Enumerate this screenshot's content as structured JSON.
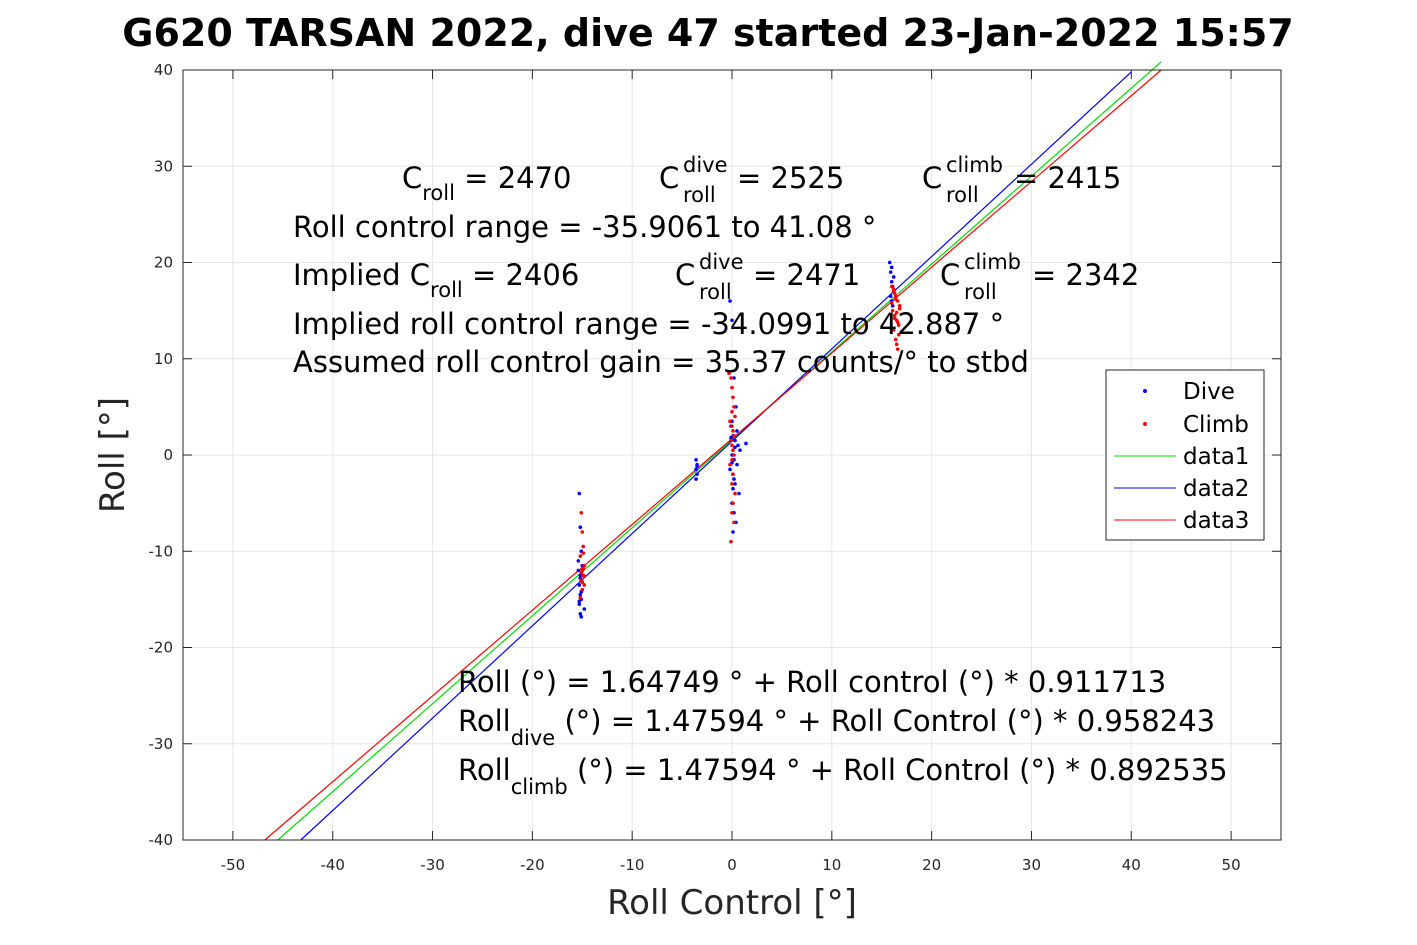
{
  "chart_data": {
    "type": "scatter",
    "title": "G620 TARSAN 2022, dive 47 started 23-Jan-2022 15:57",
    "xlabel": "Roll Control [°]",
    "ylabel": "Roll [°]",
    "xlim": [
      -55,
      55
    ],
    "ylim": [
      -40,
      40
    ],
    "xticks": [
      "-50",
      "-40",
      "-30",
      "-20",
      "-10",
      "0",
      "10",
      "20",
      "30",
      "40",
      "50"
    ],
    "yticks": [
      "-40",
      "-30",
      "-20",
      "-10",
      "0",
      "10",
      "20",
      "30",
      "40"
    ],
    "grid": true,
    "legend_position": "top-right",
    "colors": {
      "dive": "#0000ff",
      "climb": "#ff0000",
      "data1": "#00dd00",
      "data2": "#0000ff",
      "data3": "#ff0000"
    },
    "series": [
      {
        "name": "Dive",
        "kind": "points",
        "color": "#0000ff",
        "x": [
          -15.3,
          -15.2,
          -15.1,
          -15.0,
          -15.4,
          -15.2,
          -15.1,
          -15.3,
          -15.0,
          -15.2,
          -15.1,
          -15.3,
          -14.8,
          -15.2,
          -15.4,
          -15.0,
          -15.1,
          -15.2,
          -15.3,
          -15.1,
          -3.6,
          -3.5,
          -3.6,
          -3.5,
          -3.6,
          -3.5,
          -0.2,
          0.0,
          0.2,
          0.4,
          -0.1,
          0.1,
          0.3,
          0.6,
          0.8,
          1.4,
          0.0,
          0.2,
          0.5,
          -0.2,
          0.1,
          0.3,
          0.7,
          0.0,
          0.2,
          0.4,
          0.1,
          0.3,
          0.0,
          0.5,
          0.2,
          0.0,
          0.1,
          -0.1,
          15.8,
          15.9,
          16.0,
          16.1,
          16.2,
          15.9,
          16.0,
          16.1,
          16.2,
          16.0
        ],
        "y": [
          -4.0,
          -7.5,
          -10.0,
          -11.5,
          -12.0,
          -12.5,
          -13.0,
          -13.5,
          -14.0,
          -14.5,
          -15.0,
          -15.5,
          -16.0,
          -16.5,
          -11.0,
          -13.2,
          -14.2,
          -12.8,
          -15.2,
          -16.8,
          -0.5,
          -1.0,
          -1.5,
          -2.0,
          -2.5,
          -1.2,
          16.0,
          14.0,
          8.0,
          5.0,
          3.0,
          2.0,
          1.5,
          1.0,
          0.5,
          1.2,
          0.0,
          -0.5,
          -1.0,
          -1.5,
          -2.0,
          -3.0,
          -4.0,
          -5.0,
          -6.0,
          -7.0,
          -8.0,
          0.8,
          -0.8,
          2.5,
          -2.5,
          3.5,
          -3.5,
          1.8,
          20.0,
          19.0,
          18.0,
          17.5,
          17.0,
          16.5,
          16.0,
          15.5,
          18.5,
          19.5
        ]
      },
      {
        "name": "Climb",
        "kind": "points",
        "color": "#ff0000",
        "x": [
          -15.1,
          -15.0,
          -14.9,
          -15.2,
          -14.8,
          -15.0,
          -14.9,
          -15.1,
          -14.8,
          -15.0,
          -14.9,
          -15.1,
          -15.0,
          -14.8,
          -15.2,
          -14.9,
          -0.3,
          -0.1,
          0.0,
          0.1,
          0.2,
          0.3,
          -0.2,
          0.0,
          0.1,
          0.2,
          -0.1,
          0.0,
          0.1,
          0.2,
          0.0,
          -0.2,
          0.1,
          0.0,
          0.3,
          0.1,
          0.0,
          0.2,
          -0.1,
          0.0,
          16.0,
          16.2,
          16.4,
          16.6,
          16.8,
          16.1,
          16.3,
          16.5,
          16.7,
          16.2,
          16.4,
          16.6,
          16.0,
          16.3,
          16.5,
          16.8,
          16.4,
          16.6,
          16.2,
          16.7,
          16.5,
          16.3
        ],
        "y": [
          -6.0,
          -8.0,
          -9.5,
          -10.5,
          -11.5,
          -12.0,
          -12.5,
          -13.0,
          -13.5,
          -14.0,
          -11.8,
          -12.2,
          -13.2,
          -12.6,
          -14.8,
          -10.2,
          8.5,
          8.0,
          7.0,
          6.0,
          5.0,
          4.0,
          3.5,
          3.0,
          2.5,
          2.0,
          1.5,
          1.0,
          0.5,
          0.0,
          -0.5,
          -1.0,
          -2.0,
          -3.0,
          -4.0,
          -5.0,
          -6.0,
          -7.0,
          -9.0,
          4.5,
          17.5,
          17.0,
          16.5,
          16.0,
          15.5,
          15.0,
          14.5,
          14.0,
          13.5,
          13.0,
          12.0,
          11.0,
          15.8,
          16.8,
          14.8,
          15.2,
          16.2,
          13.8,
          17.2,
          12.5,
          11.5,
          14.2
        ]
      },
      {
        "name": "data1",
        "kind": "line",
        "color": "#00dd00",
        "x": [
          -45.5,
          43.0
        ],
        "y": [
          -40.0,
          40.85
        ]
      },
      {
        "name": "data2",
        "kind": "line",
        "color": "#0000ff",
        "x": [
          -43.2,
          40.0
        ],
        "y": [
          -40.0,
          39.8
        ]
      },
      {
        "name": "data3",
        "kind": "line",
        "color": "#ff0000",
        "x": [
          -46.8,
          43.0
        ],
        "y": [
          -40.0,
          40.0
        ]
      }
    ],
    "annotations": {
      "line1": {
        "c1_main": "C",
        "c1_sub": "roll",
        "c1_val": " = 2470",
        "c2_main": "C",
        "c2_sup": "dive",
        "c2_sub": "roll",
        "c2_val": " = 2525",
        "c3_main": "C",
        "c3_sup": "climb",
        "c3_sub": "roll",
        "c3_val": " = 2415"
      },
      "line2": "Roll control range = -35.9061 to 41.08 °",
      "line3": {
        "c1_main": "Implied C",
        "c1_sub": "roll",
        "c1_val": " = 2406",
        "c2_main": "C",
        "c2_sup": "dive",
        "c2_sub": "roll",
        "c2_val": " = 2471",
        "c3_main": "C",
        "c3_sup": "climb",
        "c3_sub": "roll",
        "c3_val": " = 2342"
      },
      "line4": "Implied roll control range = -34.0991 to 42.887 °",
      "line5": "Assumed roll control gain = 35.37 counts/° to stbd",
      "eq1": "Roll (°) = 1.64749 ° + Roll control (°) * 0.911713",
      "eq2": {
        "main": "Roll",
        "sub": "dive",
        "rest": " (°) = 1.47594 ° + Roll Control (°) * 0.958243"
      },
      "eq3": {
        "main": "Roll",
        "sub": "climb",
        "rest": " (°) = 1.47594 ° + Roll Control (°) * 0.892535"
      }
    }
  }
}
